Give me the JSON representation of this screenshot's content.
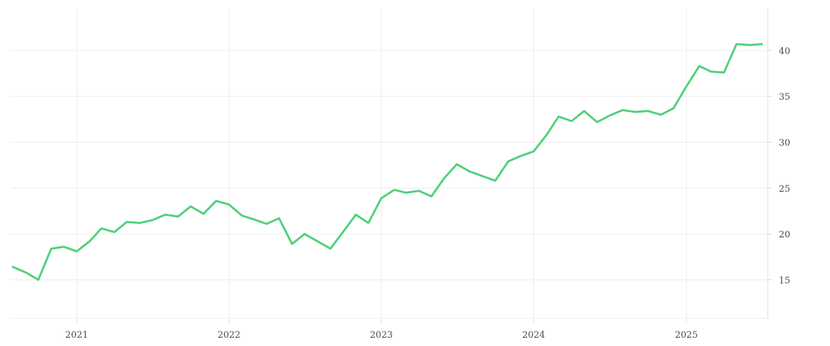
{
  "chart_data": {
    "type": "line",
    "title": "",
    "xlabel": "",
    "ylabel": "",
    "x_tick_labels": [
      "2021",
      "2022",
      "2023",
      "2024",
      "2025"
    ],
    "y_tick_labels": [
      "15",
      "20",
      "25",
      "30",
      "35",
      "40"
    ],
    "y_ticks": [
      15,
      20,
      25,
      30,
      35,
      40
    ],
    "ylim": [
      10.8,
      44.6
    ],
    "xlim": [
      "2020-07-26",
      "2025-07-15"
    ],
    "y_axis_position": "right",
    "grid": true,
    "legend": "none",
    "line_color": "#4fd17a",
    "series": [
      {
        "x": [
          "2020-08-01",
          "2020-09-01",
          "2020-10-01",
          "2020-11-01",
          "2020-12-01",
          "2021-01-01",
          "2021-02-01",
          "2021-03-01",
          "2021-04-01",
          "2021-05-01",
          "2021-06-01",
          "2021-07-01",
          "2021-08-01",
          "2021-09-01",
          "2021-10-01",
          "2021-11-01",
          "2021-12-01",
          "2022-01-01",
          "2022-02-01",
          "2022-03-01",
          "2022-04-01",
          "2022-05-01",
          "2022-06-01",
          "2022-07-01",
          "2022-08-01",
          "2022-09-01",
          "2022-10-01",
          "2022-11-01",
          "2022-12-01",
          "2023-01-01",
          "2023-02-01",
          "2023-03-01",
          "2023-04-01",
          "2023-05-01",
          "2023-06-01",
          "2023-07-01",
          "2023-08-01",
          "2023-09-01",
          "2023-10-01",
          "2023-11-01",
          "2023-12-01",
          "2024-01-01",
          "2024-02-01",
          "2024-03-01",
          "2024-04-01",
          "2024-05-01",
          "2024-06-01",
          "2024-07-01",
          "2024-08-01",
          "2024-09-01",
          "2024-10-01",
          "2024-11-01",
          "2024-12-01",
          "2025-01-01",
          "2025-02-01",
          "2025-03-01",
          "2025-04-01",
          "2025-05-01",
          "2025-06-01",
          "2025-07-01"
        ],
        "y": [
          16.4,
          15.8,
          15.0,
          18.4,
          18.6,
          18.1,
          19.2,
          20.6,
          20.2,
          21.3,
          21.2,
          21.5,
          22.1,
          21.9,
          23.0,
          22.2,
          23.6,
          23.2,
          22.0,
          21.6,
          21.1,
          21.7,
          18.9,
          20.0,
          19.2,
          18.4,
          20.2,
          22.1,
          21.2,
          23.9,
          24.8,
          24.5,
          24.7,
          24.1,
          26.1,
          27.6,
          26.8,
          26.3,
          25.8,
          27.9,
          28.5,
          29.0,
          30.8,
          32.8,
          32.3,
          33.4,
          32.2,
          32.9,
          33.5,
          33.3,
          33.4,
          33.0,
          33.7,
          36.1,
          38.3,
          37.7,
          37.6,
          40.7,
          40.6,
          40.7
        ]
      }
    ]
  }
}
